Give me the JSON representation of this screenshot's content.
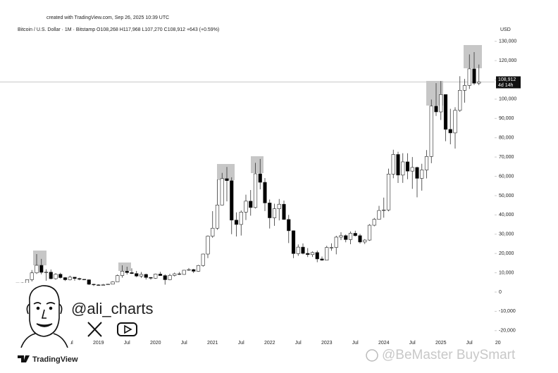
{
  "chart_data": {
    "type": "candlestick",
    "created": "created with TradingView.com, Sep 26, 2025 10:39 UTC",
    "title": "Bitcoin / U.S. Dollar · 1M · Bitstamp  O108,268 H117,968 L107,270 C108,912 +643 (+0.59%)",
    "currency": "USD",
    "last_label": "108,912",
    "countdown": "4d 14h",
    "handle": "@ali_charts",
    "brand": "TradingView",
    "watermark": "@BeMaster BuySmart",
    "x": [
      "2017-08",
      "2017-09",
      "2017-10",
      "2017-11",
      "2017-12",
      "2018-01",
      "2018-02",
      "2018-03",
      "2018-04",
      "2018-05",
      "2018-06",
      "2018-07",
      "2018-08",
      "2018-09",
      "2018-10",
      "2018-11",
      "2018-12",
      "2019-01",
      "2019-02",
      "2019-03",
      "2019-04",
      "2019-05",
      "2019-06",
      "2019-07",
      "2019-08",
      "2019-09",
      "2019-10",
      "2019-11",
      "2019-12",
      "2020-01",
      "2020-02",
      "2020-03",
      "2020-04",
      "2020-05",
      "2020-06",
      "2020-07",
      "2020-08",
      "2020-09",
      "2020-10",
      "2020-11",
      "2020-12",
      "2021-01",
      "2021-02",
      "2021-03",
      "2021-04",
      "2021-05",
      "2021-06",
      "2021-07",
      "2021-08",
      "2021-09",
      "2021-10",
      "2021-11",
      "2021-12",
      "2022-01",
      "2022-02",
      "2022-03",
      "2022-04",
      "2022-05",
      "2022-06",
      "2022-07",
      "2022-08",
      "2022-09",
      "2022-10",
      "2022-11",
      "2022-12",
      "2023-01",
      "2023-02",
      "2023-03",
      "2023-04",
      "2023-05",
      "2023-06",
      "2023-07",
      "2023-08",
      "2023-09",
      "2023-10",
      "2023-11",
      "2023-12",
      "2024-01",
      "2024-02",
      "2024-03",
      "2024-04",
      "2024-05",
      "2024-06",
      "2024-07",
      "2024-08",
      "2024-09",
      "2024-10",
      "2024-11",
      "2024-12",
      "2025-01",
      "2025-02",
      "2025-03",
      "2025-04",
      "2025-05",
      "2025-06",
      "2025-07",
      "2025-08",
      "2025-09"
    ],
    "open": [
      2870,
      4700,
      4340,
      6450,
      9950,
      13860,
      10220,
      10320,
      6930,
      9240,
      7490,
      6390,
      7730,
      7030,
      6630,
      6370,
      4040,
      3740,
      3440,
      3820,
      4100,
      5320,
      8570,
      10820,
      10080,
      9600,
      8290,
      9150,
      7570,
      7190,
      9350,
      8540,
      6410,
      8630,
      9450,
      9140,
      11320,
      11650,
      10780,
      13780,
      19700,
      28990,
      33110,
      45140,
      58790,
      57750,
      37300,
      35040,
      41460,
      47130,
      43820,
      61300,
      56900,
      46200,
      38480,
      43180,
      45530,
      37640,
      31790,
      19940,
      23300,
      20050,
      19420,
      20490,
      17170,
      16540,
      23130,
      23150,
      28470,
      29250,
      27210,
      30470,
      29230,
      25940,
      26960,
      34650,
      37720,
      42280,
      42580,
      61170,
      71330,
      60640,
      67500,
      62700,
      64600,
      58950,
      63300,
      70300,
      96400,
      93400,
      102400,
      84350,
      82500,
      94200,
      104600,
      107100,
      115700,
      108268
    ],
    "high": [
      4750,
      5000,
      6470,
      11400,
      19700,
      17200,
      11800,
      11700,
      9760,
      9990,
      7760,
      8500,
      7760,
      7400,
      6750,
      6550,
      4300,
      4070,
      4200,
      4130,
      5650,
      9080,
      13880,
      13140,
      12330,
      10950,
      10400,
      9530,
      7750,
      9600,
      10500,
      9190,
      9470,
      10080,
      10380,
      11450,
      12470,
      12050,
      14100,
      19900,
      29300,
      41950,
      58350,
      61780,
      64860,
      59500,
      41330,
      42300,
      50500,
      52900,
      66990,
      69000,
      59100,
      47990,
      45800,
      48240,
      47440,
      40000,
      31950,
      24670,
      25200,
      22800,
      21080,
      21470,
      18400,
      23950,
      25250,
      29200,
      31000,
      29830,
      31430,
      31800,
      30200,
      27470,
      35200,
      38420,
      44700,
      48970,
      64000,
      73790,
      72750,
      71980,
      71950,
      70000,
      65000,
      66500,
      73600,
      99800,
      108300,
      109400,
      102500,
      95000,
      95800,
      111900,
      110500,
      123200,
      124400,
      117968
    ],
    "low": [
      2700,
      2970,
      4110,
      5500,
      9400,
      9200,
      5900,
      6600,
      6430,
      7050,
      5760,
      6070,
      5880,
      6100,
      6200,
      3650,
      3150,
      3350,
      3400,
      3690,
      4070,
      5330,
      7460,
      9070,
      9330,
      7720,
      7300,
      6520,
      6430,
      6850,
      8450,
      3850,
      6160,
      8110,
      8900,
      8990,
      10980,
      9870,
      10540,
      13200,
      17580,
      28130,
      32300,
      44950,
      47000,
      30000,
      28800,
      29300,
      37330,
      39600,
      43300,
      53250,
      42000,
      32950,
      34320,
      37150,
      37500,
      25400,
      17600,
      18780,
      19550,
      18150,
      18180,
      15480,
      16250,
      16500,
      21410,
      19560,
      26950,
      25800,
      24800,
      28860,
      25170,
      24900,
      26550,
      34100,
      37650,
      38550,
      41880,
      59000,
      56550,
      56600,
      58500,
      53500,
      49100,
      52570,
      58900,
      66800,
      91300,
      89200,
      78200,
      76600,
      74400,
      93400,
      98200,
      105300,
      107400,
      107270
    ],
    "close": [
      4700,
      4340,
      6450,
      9950,
      13860,
      10220,
      10320,
      6930,
      9240,
      7490,
      6390,
      7730,
      7030,
      6630,
      6370,
      4040,
      3740,
      3440,
      3820,
      4100,
      5320,
      8570,
      10820,
      10080,
      9600,
      8290,
      9150,
      7570,
      7190,
      9350,
      8540,
      6410,
      8630,
      9450,
      9140,
      11320,
      11650,
      10780,
      13780,
      19700,
      28990,
      33110,
      45140,
      58790,
      57750,
      37300,
      35040,
      41460,
      47130,
      43820,
      61300,
      56900,
      46200,
      38480,
      43180,
      45530,
      37640,
      31790,
      19940,
      23300,
      20050,
      19420,
      20490,
      17170,
      16540,
      23130,
      23150,
      28470,
      29250,
      27210,
      30470,
      29230,
      25940,
      26960,
      34650,
      37720,
      42280,
      42580,
      61170,
      71330,
      60640,
      67500,
      62700,
      64600,
      58950,
      63300,
      70300,
      96400,
      93400,
      102400,
      84350,
      82500,
      94200,
      104600,
      107100,
      115700,
      108268,
      108912
    ],
    "up_color": "#ffffff",
    "down_color": "#000000",
    "ylim": [
      -27000,
      139000
    ],
    "yticks": [
      {
        "value": -20000,
        "label": "-20,000"
      },
      {
        "value": -10000,
        "label": "-10,000"
      },
      0,
      {
        "value": 10000,
        "label": "10,000"
      },
      {
        "value": 20000,
        "label": "20,000"
      },
      {
        "value": 30000,
        "label": "30,000"
      },
      {
        "value": 40000,
        "label": "40,000"
      },
      {
        "value": 50000,
        "label": "50,000"
      },
      {
        "value": 60000,
        "label": "60,000"
      },
      {
        "value": 70000,
        "label": "70,000"
      },
      {
        "value": 80000,
        "label": "80,000"
      },
      {
        "value": 90000,
        "label": "90,000"
      },
      {
        "value": 100000,
        "label": "100,000"
      },
      {
        "value": 110000,
        "label": "110,000"
      },
      {
        "value": 120000,
        "label": "120,000"
      },
      {
        "value": 130000,
        "label": "130,000"
      }
    ],
    "xticks": [
      {
        "value": "2018-01",
        "label": "2018"
      },
      {
        "value": "2018-07",
        "label": "Jul"
      },
      {
        "value": "2019-01",
        "label": "2019"
      },
      {
        "value": "2019-07",
        "label": "Jul"
      },
      {
        "value": "2020-01",
        "label": "2020"
      },
      {
        "value": "2020-07",
        "label": "Jul"
      },
      {
        "value": "2021-01",
        "label": "2021"
      },
      {
        "value": "2021-07",
        "label": "Jul"
      },
      {
        "value": "2022-01",
        "label": "2022"
      },
      {
        "value": "2022-07",
        "label": "Jul"
      },
      {
        "value": "2023-01",
        "label": "2023"
      },
      {
        "value": "2023-07",
        "label": "Jul"
      },
      {
        "value": "2024-01",
        "label": "2024"
      },
      {
        "value": "2024-07",
        "label": "Jul"
      },
      {
        "value": "2025-01",
        "label": "2025"
      },
      {
        "value": "2025-07",
        "label": "Jul"
      },
      {
        "value": "2026-01",
        "label": "20"
      }
    ],
    "grid": false
  }
}
